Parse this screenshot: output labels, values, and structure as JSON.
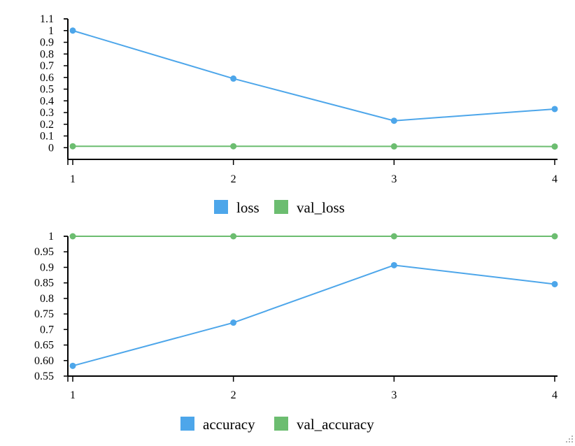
{
  "chart_data": [
    {
      "type": "line",
      "x": [
        1,
        2,
        3,
        4
      ],
      "xticks": [
        "1",
        "2",
        "3",
        "4"
      ],
      "ylim": [
        -0.1,
        1.1
      ],
      "yticks": [
        "0",
        "0.1",
        "0.2",
        "0.3",
        "0.4",
        "0.5",
        "0.6",
        "0.7",
        "0.8",
        "0.9",
        "1",
        "1.1"
      ],
      "series": [
        {
          "name": "loss",
          "values": [
            1.0,
            0.59,
            0.23,
            0.33
          ],
          "color": "#4da6ea"
        },
        {
          "name": "val_loss",
          "values": [
            0.012,
            0.012,
            0.011,
            0.01
          ],
          "color": "#6cbd70"
        }
      ],
      "legend": "bottom-center"
    },
    {
      "type": "line",
      "x": [
        1,
        2,
        3,
        4
      ],
      "xticks": [
        "1",
        "2",
        "3",
        "4"
      ],
      "ylim": [
        0.55,
        1.0
      ],
      "yticks": [
        "0.55",
        "0.60",
        "0.65",
        "0.7",
        "0.75",
        "0.8",
        "0.85",
        "0.9",
        "0.95",
        "1"
      ],
      "series": [
        {
          "name": "accuracy",
          "values": [
            0.583,
            0.722,
            0.907,
            0.846
          ],
          "color": "#4da6ea"
        },
        {
          "name": "val_accuracy",
          "values": [
            1.0,
            1.0,
            1.0,
            1.0
          ],
          "color": "#6cbd70"
        }
      ],
      "legend": "bottom-center"
    }
  ]
}
